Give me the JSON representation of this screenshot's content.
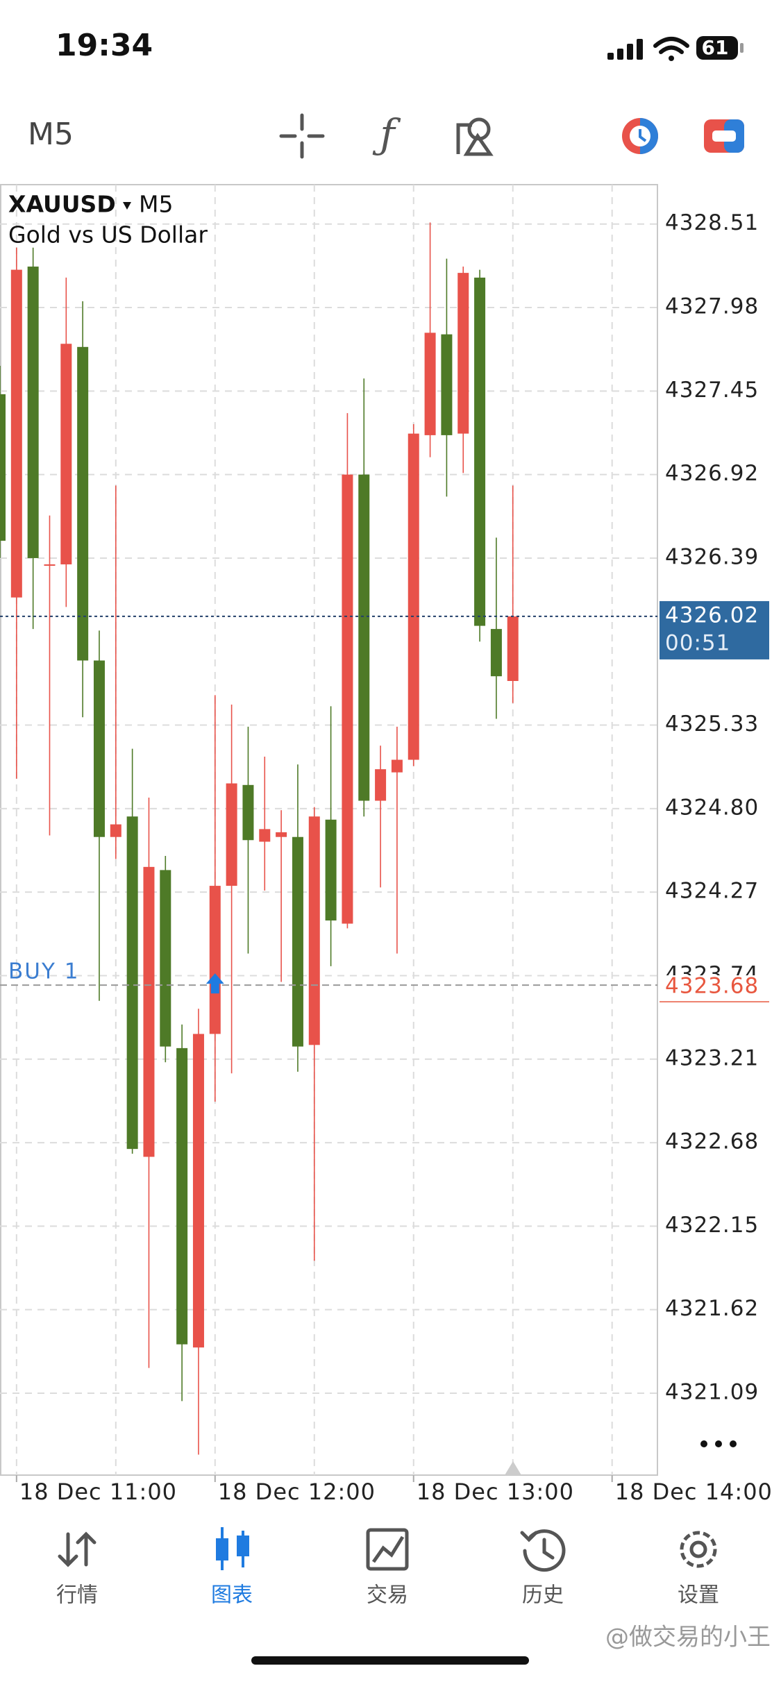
{
  "status_bar": {
    "time": "19:34",
    "battery": "61"
  },
  "toolbar": {
    "timeframe": "M5"
  },
  "chart_data": {
    "type": "candlestick",
    "title": "XAUUSD",
    "timeframe": "M5",
    "subtitle": "Gold vs US Dollar",
    "categories": [
      null,
      "18 Dec 11:00",
      null,
      null,
      null,
      null,
      null,
      null,
      null,
      null,
      null,
      null,
      null,
      "18 Dec 12:00",
      null,
      null,
      null,
      null,
      null,
      null,
      null,
      null,
      null,
      null,
      null,
      "18 Dec 13:00",
      null,
      null,
      null,
      null,
      null,
      null,
      null,
      null,
      null,
      null,
      null,
      "18 Dec 14:00"
    ],
    "open": [
      4327.43,
      4326.14,
      4328.24,
      4326.35,
      4326.35,
      4327.73,
      4325.74,
      4324.62,
      4324.75,
      4322.59,
      4324.41,
      4323.28,
      4321.38,
      4323.37,
      4324.31,
      4324.95,
      4324.59,
      4324.62,
      4324.62,
      4323.3,
      4324.73,
      4324.07,
      4326.92,
      4324.85,
      4325.03,
      4325.11,
      4327.17,
      4327.81,
      4327.18,
      4328.17,
      4325.94,
      4325.61,
      null,
      null,
      null,
      null,
      null,
      null
    ],
    "high": [
      4327.61,
      4328.36,
      4328.36,
      4326.66,
      4328.17,
      4328.02,
      4325.93,
      4326.85,
      4325.18,
      4324.87,
      4324.5,
      4323.43,
      4323.53,
      4325.52,
      4325.46,
      4325.32,
      4325.13,
      4324.79,
      4325.08,
      4324.81,
      4325.45,
      4327.31,
      4327.53,
      4325.2,
      4325.32,
      4327.24,
      4328.52,
      4328.29,
      4328.24,
      4328.22,
      4326.52,
      4326.85,
      null,
      null,
      null,
      null,
      null,
      null
    ],
    "low": [
      4326.39,
      4324.99,
      4325.94,
      4324.63,
      4326.08,
      4325.38,
      4323.58,
      4324.48,
      4322.61,
      4321.25,
      4323.19,
      4321.04,
      4320.7,
      4322.94,
      4323.12,
      4323.88,
      4324.28,
      4323.7,
      4323.13,
      4321.93,
      4323.8,
      4324.04,
      4324.75,
      4324.3,
      4323.88,
      4325.07,
      4327.03,
      4326.78,
      4326.93,
      4325.86,
      4325.37,
      4325.47,
      null,
      null,
      null,
      null,
      null,
      null
    ],
    "close": [
      4326.5,
      4328.22,
      4326.39,
      4326.35,
      4327.75,
      4325.74,
      4324.62,
      4324.7,
      4322.64,
      4324.43,
      4323.29,
      4321.4,
      4323.37,
      4324.31,
      4324.96,
      4324.6,
      4324.67,
      4324.65,
      4323.29,
      4324.75,
      4324.09,
      4326.92,
      4324.85,
      4325.05,
      4325.11,
      4327.18,
      4327.82,
      4327.17,
      4328.2,
      4325.96,
      4325.64,
      4326.02,
      null,
      null,
      null,
      null,
      null,
      null
    ],
    "up_color": "#e8524a",
    "down_color": "#4e7a27",
    "ylim": [
      4320.57,
      4328.76
    ],
    "yticks": [
      4328.51,
      4327.98,
      4327.45,
      4326.92,
      4326.39,
      4325.33,
      {
        "value": 4324.8,
        "label": "4324.80"
      },
      4324.27,
      4323.74,
      4323.21,
      4322.68,
      4322.15,
      4321.62,
      4321.09
    ],
    "grid": true,
    "current_price": {
      "value": 4326.02,
      "countdown": "00:51",
      "color": "#2f6aa0"
    },
    "position": {
      "label": "BUY 1",
      "value": 4323.68,
      "color": "#e8573f"
    }
  },
  "tabs": [
    {
      "label": "行情"
    },
    {
      "label": "图表"
    },
    {
      "label": "交易"
    },
    {
      "label": "历史"
    },
    {
      "label": "设置"
    }
  ],
  "active_tab": 1,
  "watermark": "@做交易的小王"
}
